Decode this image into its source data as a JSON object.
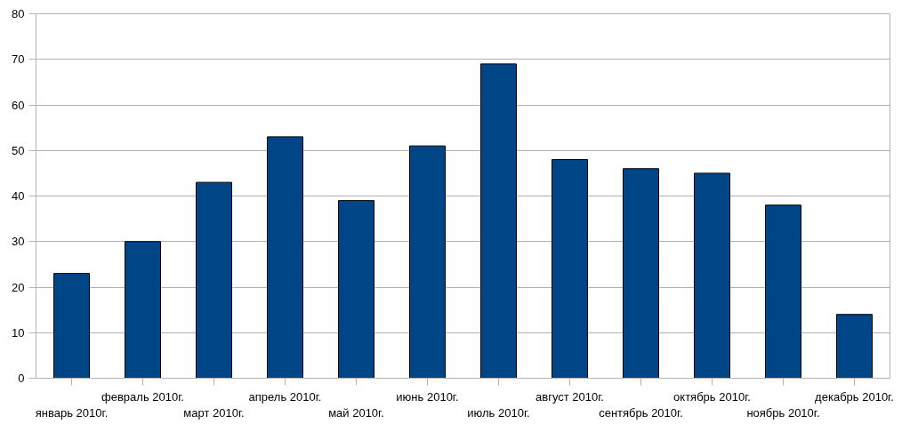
{
  "chart_data": {
    "type": "bar",
    "categories": [
      "январь 2010г.",
      "февраль 2010г.",
      "март 2010г.",
      "апрель 2010г.",
      "май 2010г.",
      "июнь 2010г.",
      "июль 2010г.",
      "август 2010г.",
      "сентябрь 2010г.",
      "октябрь 2010г.",
      "ноябрь 2010г.",
      "декабрь 2010г."
    ],
    "values": [
      23,
      30,
      43,
      53,
      39,
      51,
      69,
      48,
      46,
      45,
      38,
      14
    ],
    "color": "#004586",
    "ylim": [
      0,
      80
    ],
    "yticks": [
      0,
      10,
      20,
      30,
      40,
      50,
      60,
      70,
      80
    ],
    "grid": "y"
  }
}
